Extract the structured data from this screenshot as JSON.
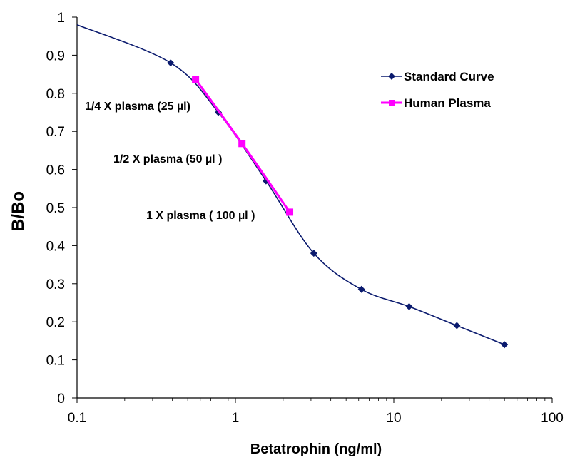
{
  "chart_data": {
    "type": "line",
    "title": "",
    "xlabel": "Betatrophin (ng/ml)",
    "ylabel": "B/Bo",
    "x_scale": "log",
    "xlim": [
      0.1,
      100
    ],
    "ylim": [
      0,
      1
    ],
    "x_ticks": [
      "0.1",
      "1",
      "10",
      "100"
    ],
    "y_ticks": [
      "0",
      "0.1",
      "0.2",
      "0.3",
      "0.4",
      "0.5",
      "0.6",
      "0.7",
      "0.8",
      "0.9",
      "1"
    ],
    "grid": false,
    "legend_position": "top-right",
    "series": [
      {
        "name": "Standard Curve",
        "color": "#0a1a6e",
        "marker": "diamond",
        "x": [
          0.1,
          0.39,
          0.78,
          1.56,
          3.125,
          6.25,
          12.5,
          25,
          50
        ],
        "y": [
          0.98,
          0.88,
          0.75,
          0.57,
          0.38,
          0.285,
          0.24,
          0.19,
          0.14
        ],
        "marker_x": [
          0.39,
          0.78,
          1.56,
          3.125,
          6.25,
          12.5,
          25,
          50
        ]
      },
      {
        "name": "Human Plasma",
        "color": "#ff00ff",
        "marker": "square",
        "x": [
          0.56,
          1.1,
          2.2
        ],
        "y": [
          0.837,
          0.668,
          0.488
        ]
      }
    ],
    "annotations": [
      {
        "text": "1/4 X  plasma (25 µl)"
      },
      {
        "text": "1/2 X  plasma (50 µl )"
      },
      {
        "text": "1 X  plasma ( 100 µl )"
      }
    ]
  }
}
